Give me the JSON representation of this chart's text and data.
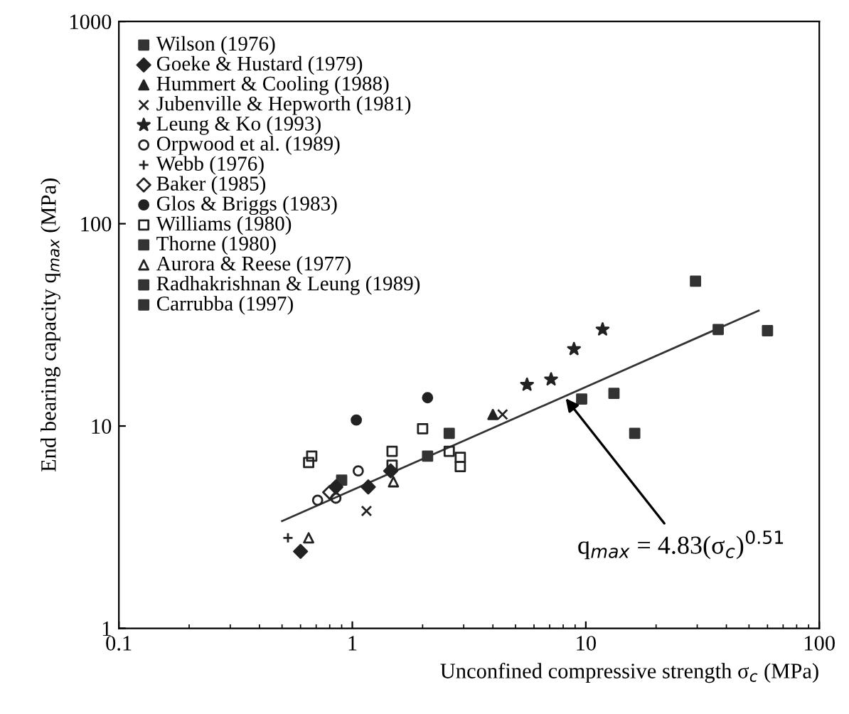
{
  "chart_data": {
    "type": "scatter",
    "xlabel": "Unconfined compressive strength σ$_{c}$ (MPa)",
    "ylabel": "End bearing capacity q$_{max}$ (MPa)",
    "xlim": [
      0.1,
      100
    ],
    "ylim": [
      1,
      1000
    ],
    "xticks": [
      0.1,
      1,
      10,
      100
    ],
    "yticks": [
      1,
      10,
      100,
      1000
    ],
    "log": "xy",
    "grid": false,
    "legend": "top left",
    "annotations": [
      {
        "text": "q$_{max}$ = 4.83(σ$_{c}$)$^{0.51}$",
        "x": 8,
        "y": 14.2
      }
    ],
    "series": [
      {
        "name": "Wilson (1976)",
        "color": "#333333",
        "marker": "square",
        "x": [
          0.9,
          2.1
        ],
        "values": [
          5.4,
          7.1
        ]
      },
      {
        "name": "Goeke & Hustard (1979)",
        "color": "#222222",
        "marker": "diamond",
        "x": [
          0.85,
          1.17,
          0.6,
          1.46
        ],
        "values": [
          5.0,
          5.0,
          2.4,
          6.0
        ]
      },
      {
        "name": "Hummert & Cooling (1988)",
        "color": "#222222",
        "marker": "triangle",
        "x": [
          4.0
        ],
        "values": [
          11.4
        ]
      },
      {
        "name": "Jubenville & Hepworth (1981)",
        "color": "#222222",
        "marker": "cross",
        "x": [
          1.15,
          4.4
        ],
        "values": [
          3.8,
          11.4
        ]
      },
      {
        "name": "Leung & Ko (1993)",
        "color": "#222222",
        "marker": "star",
        "x": [
          5.6,
          7.1,
          8.9,
          11.8
        ],
        "values": [
          16,
          17,
          24,
          30
        ]
      },
      {
        "name": "Orpwood et al. (1989)",
        "color": "#222222",
        "marker": "circle-open",
        "x": [
          0.71,
          0.85,
          1.06
        ],
        "values": [
          4.3,
          4.4,
          6.0
        ]
      },
      {
        "name": "Webb (1976)",
        "color": "#222222",
        "marker": "plus",
        "x": [
          0.53
        ],
        "values": [
          2.8
        ]
      },
      {
        "name": "Baker (1985)",
        "color": "#222222",
        "marker": "diamond-open",
        "x": [
          0.8
        ],
        "values": [
          4.7
        ]
      },
      {
        "name": "Glos & Briggs (1983)",
        "color": "#222222",
        "marker": "circle",
        "x": [
          1.04,
          2.1
        ],
        "values": [
          10.7,
          13.8
        ]
      },
      {
        "name": "Williams (1980)",
        "color": "#222222",
        "marker": "square-open",
        "x": [
          0.67,
          0.65,
          1.48,
          1.48,
          2.0,
          2.6,
          2.9,
          2.9
        ],
        "values": [
          7.1,
          6.6,
          7.5,
          6.4,
          9.7,
          7.5,
          7.0,
          6.3
        ]
      },
      {
        "name": "Thorne (1980)",
        "color": "#333333",
        "marker": "square",
        "x": [
          2.6,
          9.6
        ],
        "values": [
          9.2,
          13.6
        ]
      },
      {
        "name": "Aurora & Reese (1977)",
        "color": "#222222",
        "marker": "triangle-open",
        "x": [
          0.65,
          1.5
        ],
        "values": [
          2.8,
          5.3
        ]
      },
      {
        "name": "Radhakrishnan & Leung (1989)",
        "color": "#333333",
        "marker": "square",
        "x": [
          13.2,
          16.2,
          36.9
        ],
        "values": [
          14.5,
          9.2,
          30
        ]
      },
      {
        "name": "Carrubba (1997)",
        "color": "#333333",
        "marker": "square",
        "x": [
          29.5,
          60
        ],
        "values": [
          52,
          29.6
        ]
      },
      {
        "type": "line",
        "color": "#333333",
        "marker": "none",
        "line_style": "solid",
        "x": [
          0.5,
          55
        ],
        "values": [
          3.39,
          37.2
        ]
      }
    ]
  }
}
